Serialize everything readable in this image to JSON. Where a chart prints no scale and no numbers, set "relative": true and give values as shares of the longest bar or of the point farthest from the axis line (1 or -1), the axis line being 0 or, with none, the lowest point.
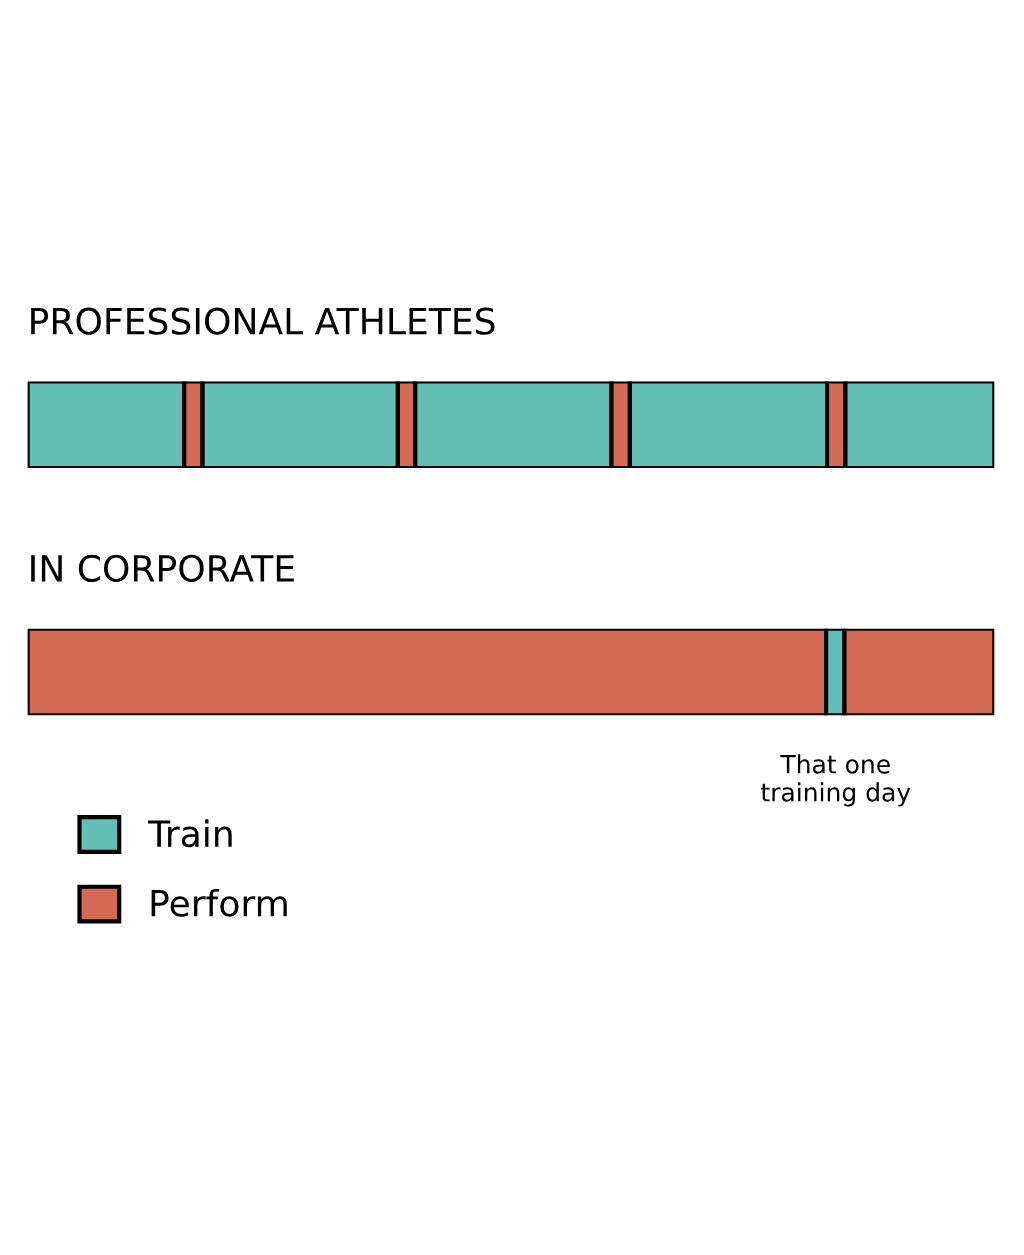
{
  "chart_data": [
    {
      "type": "bar",
      "title": "PROFESSIONAL ATHLETES",
      "orientation": "horizontal",
      "stacked": true,
      "relative": true,
      "categories": [
        null
      ],
      "series": [
        {
          "color": "#63bfb5",
          "values": [
            0.162
          ]
        },
        {
          "color": "#d66b55",
          "values": [
            0.019
          ]
        },
        {
          "color": "#63bfb5",
          "values": [
            0.202
          ]
        },
        {
          "color": "#d66b55",
          "values": [
            0.018
          ]
        },
        {
          "color": "#63bfb5",
          "values": [
            0.203
          ]
        },
        {
          "color": "#d66b55",
          "values": [
            0.019
          ]
        },
        {
          "color": "#63bfb5",
          "values": [
            0.204
          ]
        },
        {
          "color": "#d66b55",
          "values": [
            0.019
          ]
        },
        {
          "color": "#63bfb5",
          "values": [
            0.154
          ]
        }
      ]
    },
    {
      "type": "bar",
      "title": "IN CORPORATE",
      "orientation": "horizontal",
      "stacked": true,
      "relative": true,
      "categories": [
        null
      ],
      "legend": "bottom left",
      "series": [
        {
          "name": "Perform",
          "color": "#d66b55",
          "values": [
            0.826
          ]
        },
        {
          "name": "Train",
          "color": "#63bfb5",
          "values": [
            0.019
          ]
        },
        {
          "color": "#d66b55",
          "values": [
            0.155
          ]
        }
      ],
      "annotations": [
        "That one\ntraining day"
      ]
    }
  ]
}
